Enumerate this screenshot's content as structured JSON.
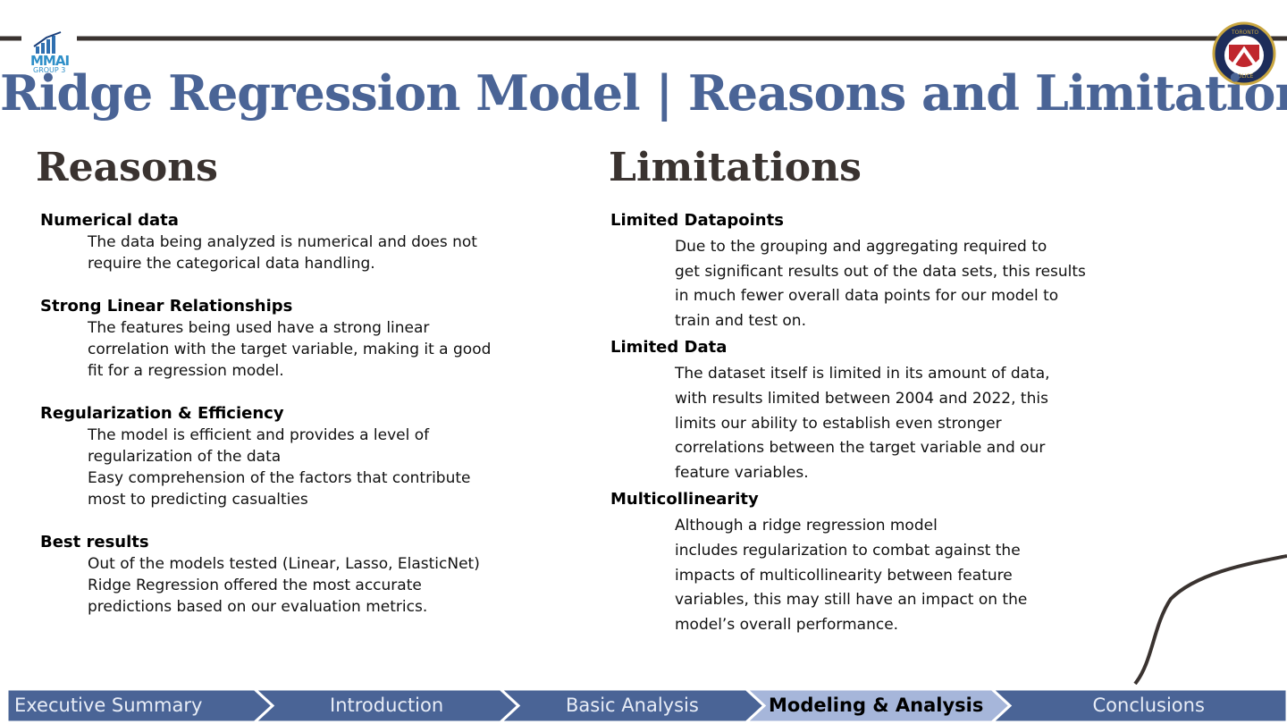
{
  "logo": {
    "title": "MMAI",
    "subtitle": "GROUP 3"
  },
  "badge": {
    "top": "TORONTO",
    "bottom": "POLICE"
  },
  "title": "Ridge Regression Model | Reasons and Limitations",
  "reasons": {
    "heading": "Reasons",
    "sections": [
      {
        "heading": "Numerical data",
        "lines": [
          "The data being analyzed is numerical and does not",
          "require the categorical data handling."
        ]
      },
      {
        "heading": "Strong Linear Relationships",
        "lines": [
          "The features being used have a strong linear",
          "correlation with the target variable, making it a good",
          "fit for a regression model."
        ]
      },
      {
        "heading": "Regularization & Efficiency",
        "lines": [
          "The model is efficient and provides a level of",
          "regularization of the data",
          "Easy comprehension of the factors that contribute",
          "most to predicting casualties"
        ]
      },
      {
        "heading": "Best results",
        "lines": [
          "Out of the models tested (Linear, Lasso, ElasticNet)",
          "Ridge Regression offered the most accurate",
          "predictions based on our evaluation metrics."
        ]
      }
    ]
  },
  "limitations": {
    "heading": "Limitations",
    "sections": [
      {
        "heading": "Limited Datapoints",
        "lines": [
          "Due to the grouping and aggregating required to",
          "get significant results out of the data sets, this results",
          "in much fewer overall data points for our model to",
          "train and test on."
        ]
      },
      {
        "heading": "Limited Data",
        "lines": [
          "The dataset itself is limited in its amount of data,",
          "with results limited between 2004 and 2022, this",
          "limits our ability to establish even stronger",
          "correlations between the target variable and our",
          "feature variables."
        ]
      },
      {
        "heading": "Multicollinearity",
        "lines": [
          "Although a ridge regression model",
          "includes regularization to combat against the",
          "impacts of multicollinearity between feature",
          "variables, this may still have an impact on the",
          "model’s overall performance."
        ]
      }
    ]
  },
  "nav": [
    "Executive Summary",
    "Introduction",
    "Basic Analysis",
    "Modeling & Analysis",
    "Conclusions"
  ],
  "active_nav": 3
}
